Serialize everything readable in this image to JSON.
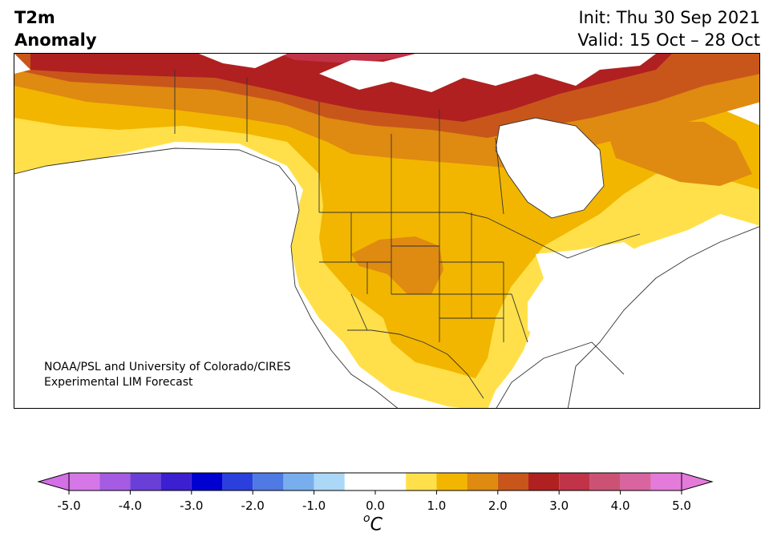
{
  "title": {
    "variable": "T2m",
    "subtitle": "Anomaly",
    "init": "Init: Thu 30 Sep 2021",
    "valid": "Valid: 15 Oct – 28 Oct"
  },
  "credit": {
    "line1": "NOAA/PSL and University of Colorado/CIRES",
    "line2": "Experimental LIM Forecast"
  },
  "colorbar": {
    "unit_sup": "o",
    "unit": "C",
    "tick_labels": [
      "-5.0",
      "-4.0",
      "-3.0",
      "-2.0",
      "-1.0",
      "0.0",
      "1.0",
      "2.0",
      "3.0",
      "4.0",
      "5.0"
    ],
    "levels": [
      -5.0,
      -4.5,
      -4.0,
      -3.5,
      -3.0,
      -2.5,
      -2.0,
      -1.5,
      -1.0,
      -0.5,
      0.5,
      1.0,
      1.5,
      2.0,
      2.5,
      3.0,
      3.5,
      4.0,
      4.5,
      5.0
    ],
    "below_color": "#d46fe8",
    "above_color": "#e47ad9",
    "colors": [
      "#d677e8",
      "#a55be2",
      "#6a3fd8",
      "#3b1fd0",
      "#0000d0",
      "#2b3fdc",
      "#4f79e3",
      "#78aeee",
      "#acd8f8",
      "#ffffff",
      "#ffe04a",
      "#f2b600",
      "#df8a10",
      "#c8561a",
      "#b02020",
      "#c03348",
      "#cc5275",
      "#d865a0",
      "#e47ad9"
    ]
  },
  "map": {
    "colors": {
      "c05": "#ffe04a",
      "c10": "#f2b600",
      "c15": "#df8a10",
      "c20": "#c8561a",
      "c25": "#b02020",
      "c30": "#c03348",
      "land_outline": "#333333",
      "water": "#ffffff"
    }
  }
}
